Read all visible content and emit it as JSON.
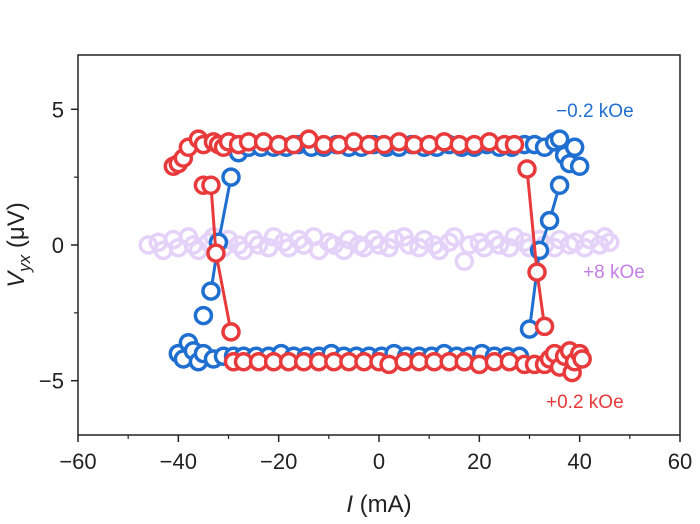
{
  "chart_data": {
    "type": "scatter",
    "title": "",
    "xlabel": {
      "italic": "I",
      "rest": " (mA)"
    },
    "ylabel": {
      "italic": "V",
      "sub": "yx",
      "rest": " (μV)"
    },
    "xlim": [
      -60,
      60
    ],
    "ylim": [
      -7,
      7
    ],
    "xticks": [
      -60,
      -40,
      -20,
      0,
      20,
      40,
      60
    ],
    "xtick_labels": [
      "−60",
      "−40",
      "−20",
      "0",
      "20",
      "40",
      "60"
    ],
    "yticks": [
      -5,
      0,
      5
    ],
    "ytick_labels": [
      "−5",
      "0",
      "5"
    ],
    "grid": false,
    "series": [
      {
        "name": "+8 kOe",
        "color": "#e4d2f8",
        "label_color": "#c57ee6",
        "points": [
          [
            -46,
            0.0
          ],
          [
            -44,
            0.1
          ],
          [
            -43,
            -0.2
          ],
          [
            -41,
            0.2
          ],
          [
            -40,
            -0.1
          ],
          [
            -38,
            0.3
          ],
          [
            -37,
            0.0
          ],
          [
            -36,
            -0.2
          ],
          [
            -34,
            0.1
          ],
          [
            -33,
            0.3
          ],
          [
            -31,
            -0.1
          ],
          [
            -30,
            0.2
          ],
          [
            -28,
            0.0
          ],
          [
            -27,
            -0.2
          ],
          [
            -25,
            0.2
          ],
          [
            -24,
            0.0
          ],
          [
            -22,
            -0.1
          ],
          [
            -21,
            0.3
          ],
          [
            -19,
            0.1
          ],
          [
            -18,
            -0.1
          ],
          [
            -16,
            0.2
          ],
          [
            -15,
            0.0
          ],
          [
            -13,
            0.3
          ],
          [
            -12,
            -0.2
          ],
          [
            -10,
            0.1
          ],
          [
            -9,
            0.0
          ],
          [
            -7,
            -0.2
          ],
          [
            -6,
            0.2
          ],
          [
            -4,
            0.0
          ],
          [
            -3,
            -0.1
          ],
          [
            -1,
            0.2
          ],
          [
            0,
            0.0
          ],
          [
            2,
            -0.1
          ],
          [
            3,
            0.2
          ],
          [
            5,
            0.3
          ],
          [
            6,
            0.0
          ],
          [
            8,
            -0.1
          ],
          [
            9,
            0.2
          ],
          [
            11,
            0.0
          ],
          [
            12,
            -0.2
          ],
          [
            14,
            0.1
          ],
          [
            15,
            0.3
          ],
          [
            17,
            -0.6
          ],
          [
            18,
            0.0
          ],
          [
            20,
            0.1
          ],
          [
            21,
            -0.1
          ],
          [
            23,
            0.2
          ],
          [
            24,
            0.0
          ],
          [
            26,
            -0.1
          ],
          [
            27,
            0.3
          ],
          [
            29,
            0.1
          ],
          [
            30,
            -0.1
          ],
          [
            32,
            0.2
          ],
          [
            33,
            0.0
          ],
          [
            35,
            -0.1
          ],
          [
            36,
            0.2
          ],
          [
            38,
            0.0
          ],
          [
            39,
            0.1
          ],
          [
            41,
            -0.1
          ],
          [
            42,
            0.2
          ],
          [
            44,
            0.0
          ],
          [
            45,
            0.3
          ],
          [
            46,
            0.1
          ]
        ],
        "lines": []
      },
      {
        "name": "−0.2 kOe",
        "color": "#1f6fd1",
        "label_color": "#1f6fd1",
        "points": [
          [
            -28,
            3.4
          ],
          [
            -26,
            3.6
          ],
          [
            -23.5,
            3.6
          ],
          [
            -21,
            3.6
          ],
          [
            -18.5,
            3.6
          ],
          [
            -16,
            3.7
          ],
          [
            -13.5,
            3.6
          ],
          [
            -11,
            3.6
          ],
          [
            -8.5,
            3.7
          ],
          [
            -6,
            3.6
          ],
          [
            -3.5,
            3.6
          ],
          [
            -1,
            3.7
          ],
          [
            1.5,
            3.6
          ],
          [
            4,
            3.6
          ],
          [
            6.5,
            3.7
          ],
          [
            9,
            3.6
          ],
          [
            11.5,
            3.6
          ],
          [
            14,
            3.7
          ],
          [
            16.5,
            3.6
          ],
          [
            19,
            3.6
          ],
          [
            21.5,
            3.7
          ],
          [
            24,
            3.6
          ],
          [
            26.5,
            3.6
          ],
          [
            29,
            3.7
          ],
          [
            31,
            3.7
          ],
          [
            33,
            3.6
          ],
          [
            35,
            3.8
          ],
          [
            36,
            3.9
          ],
          [
            37,
            3.3
          ],
          [
            38,
            3.0
          ],
          [
            39,
            3.6
          ],
          [
            40,
            2.9
          ],
          [
            36,
            2.2
          ],
          [
            34,
            0.9
          ],
          [
            32,
            -0.2
          ],
          [
            30,
            -3.1
          ],
          [
            -29.5,
            2.5
          ],
          [
            -32,
            0.1
          ],
          [
            -33.5,
            -1.7
          ],
          [
            -35,
            -2.6
          ],
          [
            -40,
            -4.0
          ],
          [
            -39,
            -4.2
          ],
          [
            -38,
            -3.6
          ],
          [
            -37,
            -3.9
          ],
          [
            -36,
            -4.3
          ],
          [
            -35,
            -4.0
          ],
          [
            -33,
            -4.2
          ],
          [
            -31,
            -4.1
          ],
          [
            -29,
            -4.1
          ],
          [
            -27,
            -4.1
          ],
          [
            -24.5,
            -4.1
          ],
          [
            -22,
            -4.1
          ],
          [
            -19.5,
            -4.0
          ],
          [
            -17,
            -4.1
          ],
          [
            -14.5,
            -4.1
          ],
          [
            -12,
            -4.1
          ],
          [
            -9.5,
            -4.0
          ],
          [
            -7,
            -4.1
          ],
          [
            -4.5,
            -4.1
          ],
          [
            -2,
            -4.1
          ],
          [
            0.5,
            -4.1
          ],
          [
            3,
            -4.0
          ],
          [
            5.5,
            -4.1
          ],
          [
            8,
            -4.1
          ],
          [
            10.5,
            -4.1
          ],
          [
            13,
            -4.0
          ],
          [
            15.5,
            -4.1
          ],
          [
            18,
            -4.1
          ],
          [
            20.5,
            -4.0
          ],
          [
            23,
            -4.1
          ],
          [
            25.5,
            -4.1
          ],
          [
            28,
            -4.1
          ]
        ],
        "lines": [
          [
            [
              -29.5,
              2.5
            ],
            [
              -32,
              0.1
            ],
            [
              -33.5,
              -1.7
            ]
          ],
          [
            [
              30,
              -3.1
            ],
            [
              32,
              -0.2
            ],
            [
              34,
              0.9
            ],
            [
              36,
              2.2
            ]
          ]
        ]
      },
      {
        "name": "+0.2 kOe",
        "color": "#e8393b",
        "label_color": "#e8393b",
        "points": [
          [
            -41,
            2.9
          ],
          [
            -40,
            3.0
          ],
          [
            -39,
            3.2
          ],
          [
            -38,
            3.6
          ],
          [
            -36,
            3.9
          ],
          [
            -35,
            3.7
          ],
          [
            -33,
            3.8
          ],
          [
            -32,
            3.7
          ],
          [
            -31,
            3.6
          ],
          [
            -30,
            3.8
          ],
          [
            -28,
            3.7
          ],
          [
            -26,
            3.8
          ],
          [
            -23,
            3.8
          ],
          [
            -20,
            3.7
          ],
          [
            -17,
            3.7
          ],
          [
            -14,
            3.9
          ],
          [
            -11,
            3.7
          ],
          [
            -8,
            3.7
          ],
          [
            -5,
            3.8
          ],
          [
            -2,
            3.7
          ],
          [
            1,
            3.7
          ],
          [
            4,
            3.8
          ],
          [
            7,
            3.7
          ],
          [
            10,
            3.7
          ],
          [
            13,
            3.8
          ],
          [
            16,
            3.7
          ],
          [
            19,
            3.7
          ],
          [
            22,
            3.8
          ],
          [
            25,
            3.7
          ],
          [
            27,
            3.7
          ],
          [
            -35,
            2.2
          ],
          [
            -33.5,
            2.2
          ],
          [
            -32.5,
            -0.3
          ],
          [
            -29.5,
            -3.2
          ],
          [
            29.5,
            2.8
          ],
          [
            31.5,
            -1.0
          ],
          [
            33,
            -3.0
          ],
          [
            -29,
            -4.3
          ],
          [
            -27,
            -4.3
          ],
          [
            -24,
            -4.3
          ],
          [
            -21,
            -4.3
          ],
          [
            -18,
            -4.3
          ],
          [
            -15,
            -4.3
          ],
          [
            -12,
            -4.3
          ],
          [
            -9,
            -4.3
          ],
          [
            -6,
            -4.3
          ],
          [
            -3,
            -4.3
          ],
          [
            0,
            -4.3
          ],
          [
            2,
            -4.4
          ],
          [
            5,
            -4.3
          ],
          [
            8,
            -4.3
          ],
          [
            11,
            -4.3
          ],
          [
            14,
            -4.3
          ],
          [
            17,
            -4.3
          ],
          [
            20,
            -4.4
          ],
          [
            23,
            -4.3
          ],
          [
            26,
            -4.3
          ],
          [
            29,
            -4.4
          ],
          [
            31,
            -4.4
          ],
          [
            33,
            -4.4
          ],
          [
            34,
            -4.2
          ],
          [
            35,
            -4.0
          ],
          [
            36,
            -4.5
          ],
          [
            37,
            -4.1
          ],
          [
            38,
            -3.9
          ],
          [
            38.5,
            -4.7
          ],
          [
            39,
            -4.3
          ],
          [
            40,
            -4.0
          ],
          [
            40.5,
            -4.2
          ]
        ],
        "lines": [
          [
            [
              -33.5,
              2.2
            ],
            [
              -32.5,
              -0.3
            ],
            [
              -29.5,
              -3.2
            ]
          ],
          [
            [
              29.5,
              2.8
            ],
            [
              31.5,
              -1.0
            ],
            [
              33,
              -3.0
            ]
          ]
        ]
      }
    ]
  }
}
